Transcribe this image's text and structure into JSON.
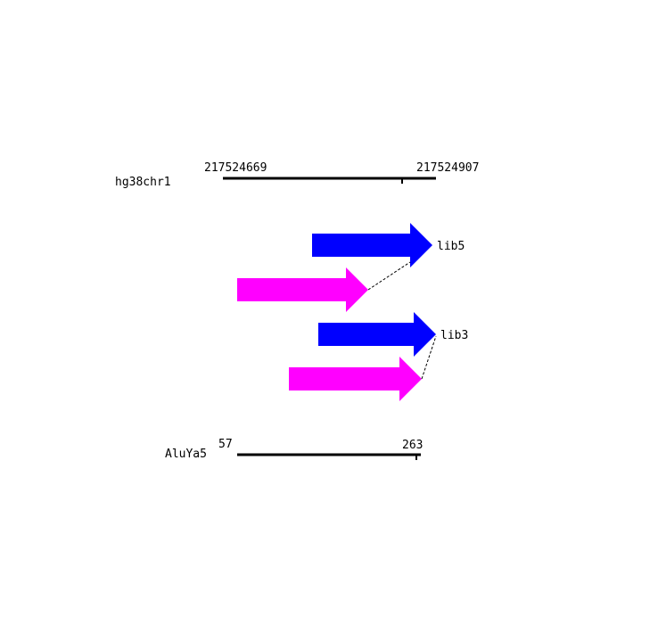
{
  "genome_track": {
    "name": "hg38chr1",
    "start": "217524669",
    "end": "217524907"
  },
  "repeat_track": {
    "name": "AluYa5",
    "start": "57",
    "end": "263"
  },
  "libraries": [
    {
      "label": "lib5"
    },
    {
      "label": "lib3"
    }
  ],
  "colors": {
    "genome_arrow": "#0000ff",
    "repeat_arrow": "#ff00ff",
    "axis": "#000000"
  }
}
